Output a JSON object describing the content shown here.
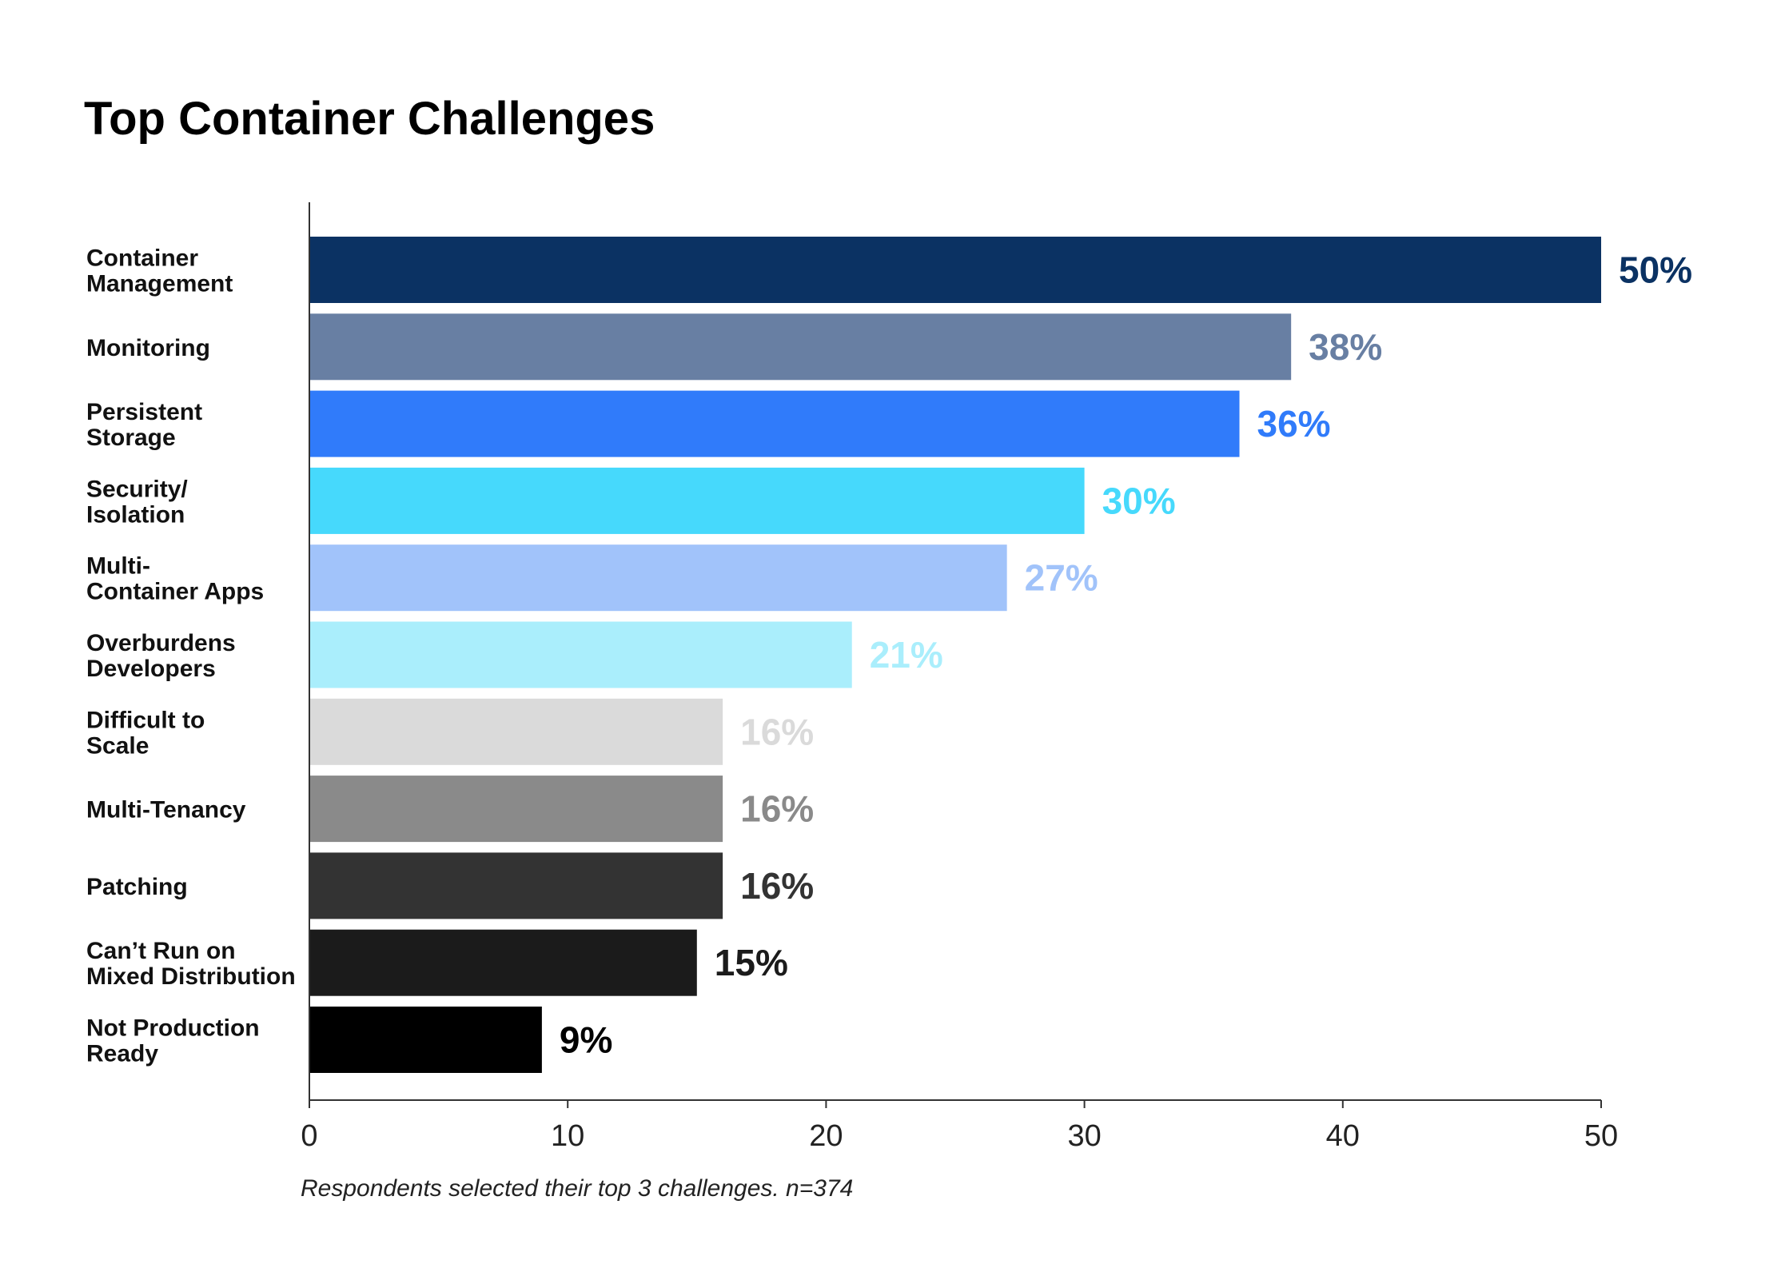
{
  "chart_data": {
    "type": "bar",
    "orientation": "horizontal",
    "title": "Top Container Challenges",
    "categories": [
      [
        "Container",
        "Management"
      ],
      [
        "Monitoring"
      ],
      [
        "Persistent",
        "Storage"
      ],
      [
        "Security/",
        "Isolation"
      ],
      [
        "Multi-",
        "Container Apps"
      ],
      [
        "Overburdens",
        "Developers"
      ],
      [
        "Difficult to",
        "Scale"
      ],
      [
        "Multi-Tenancy"
      ],
      [
        "Patching"
      ],
      [
        "Can’t Run on",
        "Mixed Distribution"
      ],
      [
        "Not Production",
        "Ready"
      ]
    ],
    "values": [
      50,
      38,
      36,
      30,
      27,
      21,
      16,
      16,
      16,
      15,
      9
    ],
    "value_labels": [
      "50%",
      "38%",
      "36%",
      "30%",
      "27%",
      "21%",
      "16%",
      "16%",
      "16%",
      "15%",
      "9%"
    ],
    "colors": [
      "#0b3263",
      "#687fa3",
      "#307bfa",
      "#46d9fc",
      "#a1c3fa",
      "#aaeefc",
      "#dadada",
      "#8a8a8a",
      "#333333",
      "#1b1b1b",
      "#000000"
    ],
    "xlim": [
      0,
      50
    ],
    "xticks": [
      0,
      10,
      20,
      30,
      40,
      50
    ],
    "grid": false,
    "note": "Respondents selected their top 3 challenges. n=374"
  }
}
